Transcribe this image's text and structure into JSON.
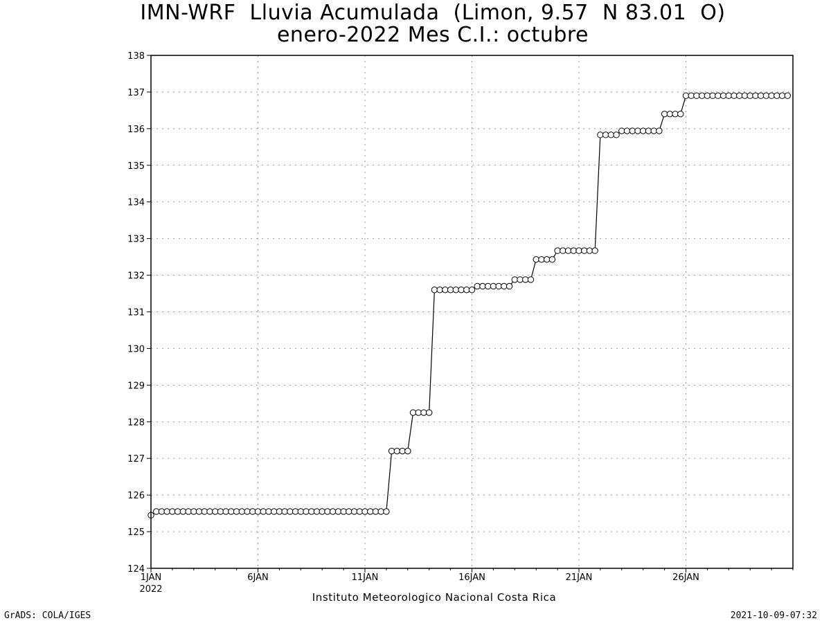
{
  "title_line1": "IMN-WRF  Lluvia Acumulada  (Limon, 9.57  N 83.01  O)",
  "title_line2": "enero-2022 Mes C.I.: octubre",
  "footer_left": "GrADS: COLA/IGES",
  "footer_right": "2021-10-09-07:32",
  "chart_data": {
    "type": "line",
    "title": "IMN-WRF  Lluvia Acumulada  (Limon, 9.57  N 83.01  O)",
    "subtitle": "enero-2022 Mes C.I.: octubre",
    "xlabel": "Instituto Meteorologico Nacional Costa Rica",
    "ylabel": "",
    "x_axis": {
      "start": "2022-01-01",
      "end": "2022-01-31",
      "ticks": [
        "1JAN",
        "6JAN",
        "11JAN",
        "16JAN",
        "21JAN",
        "26JAN"
      ],
      "first_tick_sublabel": "2022"
    },
    "ylim": [
      124,
      138
    ],
    "y_ticks": [
      124,
      125,
      126,
      127,
      128,
      129,
      130,
      131,
      132,
      133,
      134,
      135,
      136,
      137,
      138
    ],
    "grid": true,
    "marker": "open-circle",
    "series": [
      {
        "x_start": "2022-01-01T00:00",
        "x_step_hours": 6,
        "values": [
          125.45,
          125.55,
          125.55,
          125.55,
          125.55,
          125.55,
          125.55,
          125.55,
          125.55,
          125.55,
          125.55,
          125.55,
          125.55,
          125.55,
          125.55,
          125.55,
          125.55,
          125.55,
          125.55,
          125.55,
          125.55,
          125.55,
          125.55,
          125.55,
          125.55,
          125.55,
          125.55,
          125.55,
          125.55,
          125.55,
          125.55,
          125.55,
          125.55,
          125.55,
          125.55,
          125.55,
          125.55,
          125.55,
          125.55,
          125.55,
          125.55,
          125.55,
          125.55,
          125.55,
          125.55,
          127.2,
          127.2,
          127.2,
          127.2,
          128.25,
          128.25,
          128.25,
          128.25,
          131.6,
          131.6,
          131.6,
          131.6,
          131.6,
          131.6,
          131.6,
          131.6,
          131.7,
          131.7,
          131.7,
          131.7,
          131.7,
          131.7,
          131.7,
          131.88,
          131.88,
          131.88,
          131.88,
          132.43,
          132.43,
          132.43,
          132.43,
          132.67,
          132.67,
          132.67,
          132.67,
          132.67,
          132.67,
          132.67,
          132.67,
          135.83,
          135.83,
          135.83,
          135.83,
          135.94,
          135.94,
          135.94,
          135.94,
          135.94,
          135.94,
          135.94,
          135.94,
          136.4,
          136.4,
          136.4,
          136.4,
          136.9,
          136.9,
          136.9,
          136.9,
          136.9,
          136.9,
          136.9,
          136.9,
          136.9,
          136.9,
          136.9,
          136.9,
          136.9,
          136.9,
          136.9,
          136.9,
          136.9,
          136.9,
          136.9,
          136.9
        ]
      }
    ]
  }
}
